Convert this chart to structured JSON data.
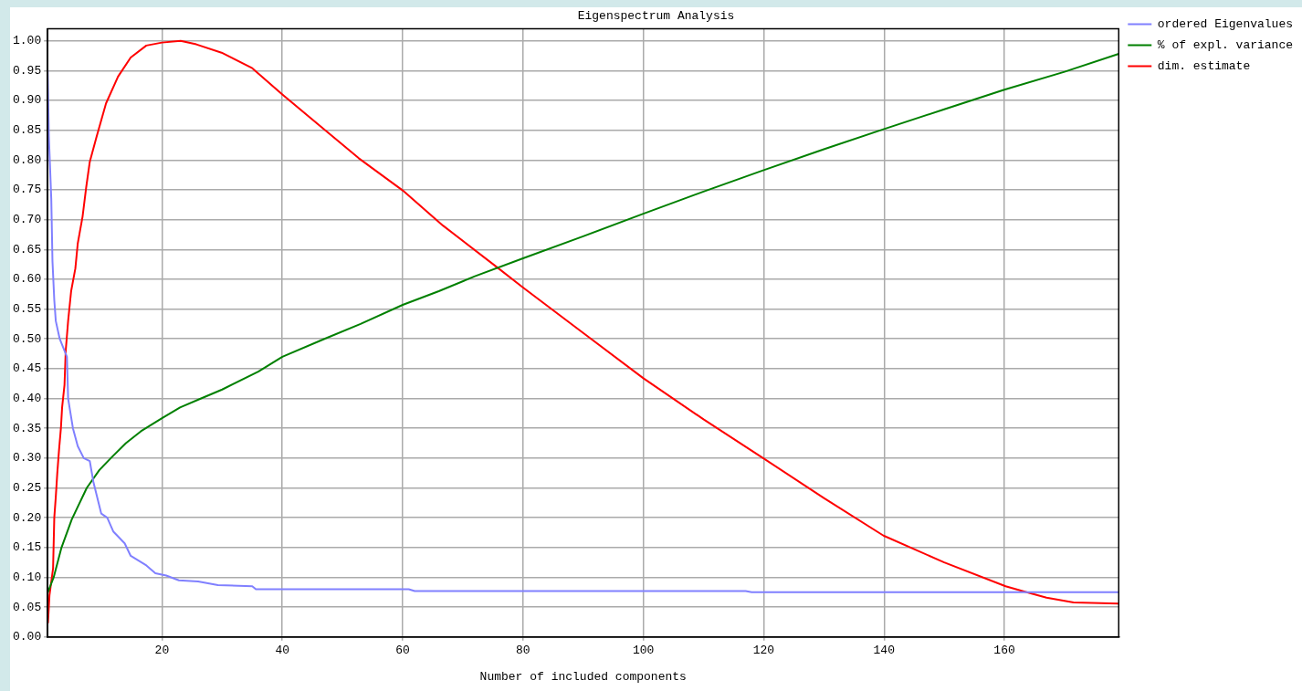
{
  "chart_data": {
    "type": "line",
    "title": "Eigenspectrum Analysis",
    "xlabel": "Number of included components",
    "xlim": [
      1,
      179
    ],
    "xticks": [
      20,
      40,
      60,
      80,
      100,
      120,
      140,
      160
    ],
    "ylim": [
      0,
      1.02
    ],
    "yticks": [
      {
        "value": 0,
        "label": "0.00"
      },
      {
        "value": 0.05,
        "label": "0.05"
      },
      {
        "value": 0.1,
        "label": "0.10"
      },
      {
        "value": 0.15,
        "label": "0.15"
      },
      {
        "value": 0.2,
        "label": "0.20"
      },
      {
        "value": 0.25,
        "label": "0.25"
      },
      {
        "value": 0.3,
        "label": "0.30"
      },
      {
        "value": 0.35,
        "label": "0.35"
      },
      {
        "value": 0.4,
        "label": "0.40"
      },
      {
        "value": 0.45,
        "label": "0.45"
      },
      {
        "value": 0.5,
        "label": "0.50"
      },
      {
        "value": 0.55,
        "label": "0.55"
      },
      {
        "value": 0.6,
        "label": "0.60"
      },
      {
        "value": 0.65,
        "label": "0.65"
      },
      {
        "value": 0.7,
        "label": "0.70"
      },
      {
        "value": 0.75,
        "label": "0.75"
      },
      {
        "value": 0.8,
        "label": "0.80"
      },
      {
        "value": 0.85,
        "label": "0.85"
      },
      {
        "value": 0.9,
        "label": "0.90"
      },
      {
        "value": 0.95,
        "label": "0.95"
      },
      {
        "value": 1,
        "label": "1.00"
      }
    ],
    "grid": true,
    "legend": "top right",
    "marker": "none",
    "line_style": "solid",
    "series": [
      {
        "name": "ordered Eigenvalues",
        "color": "#8080ff",
        "x": [
          1,
          1.2,
          1.6,
          1.8,
          2.1,
          2.35,
          3,
          4.2,
          4.4,
          5.2,
          6,
          7,
          8,
          8.6,
          9.9,
          10.9,
          11.9,
          13.8,
          14.8,
          17.4,
          18.9,
          20.7,
          22.8,
          26,
          29.3,
          35,
          35.6,
          61,
          62,
          117,
          118,
          179
        ],
        "values": [
          0.95,
          0.84,
          0.735,
          0.63,
          0.565,
          0.53,
          0.5,
          0.47,
          0.4,
          0.35,
          0.32,
          0.3,
          0.295,
          0.26,
          0.207,
          0.2,
          0.177,
          0.157,
          0.136,
          0.12,
          0.107,
          0.103,
          0.095,
          0.093,
          0.087,
          0.085,
          0.08,
          0.08,
          0.077,
          0.077,
          0.075,
          0.075
        ]
      },
      {
        "name": "% of expl. variance",
        "color": "#008000",
        "x": [
          1,
          2,
          3.3,
          5,
          7.5,
          9.6,
          11.5,
          14,
          16.5,
          20,
          23,
          26.5,
          30,
          36,
          40,
          47,
          53,
          60,
          66,
          72,
          80,
          90,
          100,
          110,
          120,
          130,
          140,
          150,
          160,
          170,
          179
        ],
        "values": [
          0.074,
          0.1,
          0.15,
          0.197,
          0.25,
          0.28,
          0.3,
          0.325,
          0.345,
          0.367,
          0.385,
          0.4,
          0.415,
          0.445,
          0.47,
          0.5,
          0.525,
          0.557,
          0.58,
          0.605,
          0.635,
          0.672,
          0.71,
          0.747,
          0.783,
          0.818,
          0.852,
          0.885,
          0.918,
          0.948,
          0.978
        ]
      },
      {
        "name": "dim. estimate",
        "color": "#ff0000",
        "x": [
          1.05,
          1.3,
          1.9,
          2.1,
          2.35,
          2.6,
          2.9,
          3.2,
          3.4,
          3.8,
          4,
          4.4,
          4.9,
          5.6,
          6,
          6.8,
          7.4,
          8,
          9.1,
          10.7,
          12.7,
          14.8,
          17.4,
          20,
          23.1,
          25.7,
          29.9,
          35,
          40,
          47,
          52.7,
          60,
          66.7,
          75.7,
          80,
          90,
          100,
          110,
          119.9,
          130,
          139.9,
          150,
          160.2,
          163,
          167,
          171.5,
          179
        ],
        "values": [
          0.023,
          0.07,
          0.115,
          0.2,
          0.235,
          0.275,
          0.315,
          0.35,
          0.385,
          0.423,
          0.48,
          0.53,
          0.58,
          0.618,
          0.66,
          0.705,
          0.754,
          0.797,
          0.838,
          0.895,
          0.94,
          0.972,
          0.992,
          0.997,
          1,
          0.994,
          0.98,
          0.954,
          0.91,
          0.851,
          0.803,
          0.749,
          0.69,
          0.62,
          0.586,
          0.51,
          0.434,
          0.365,
          0.3,
          0.233,
          0.17,
          0.125,
          0.085,
          0.077,
          0.066,
          0.058,
          0.056
        ]
      }
    ]
  }
}
